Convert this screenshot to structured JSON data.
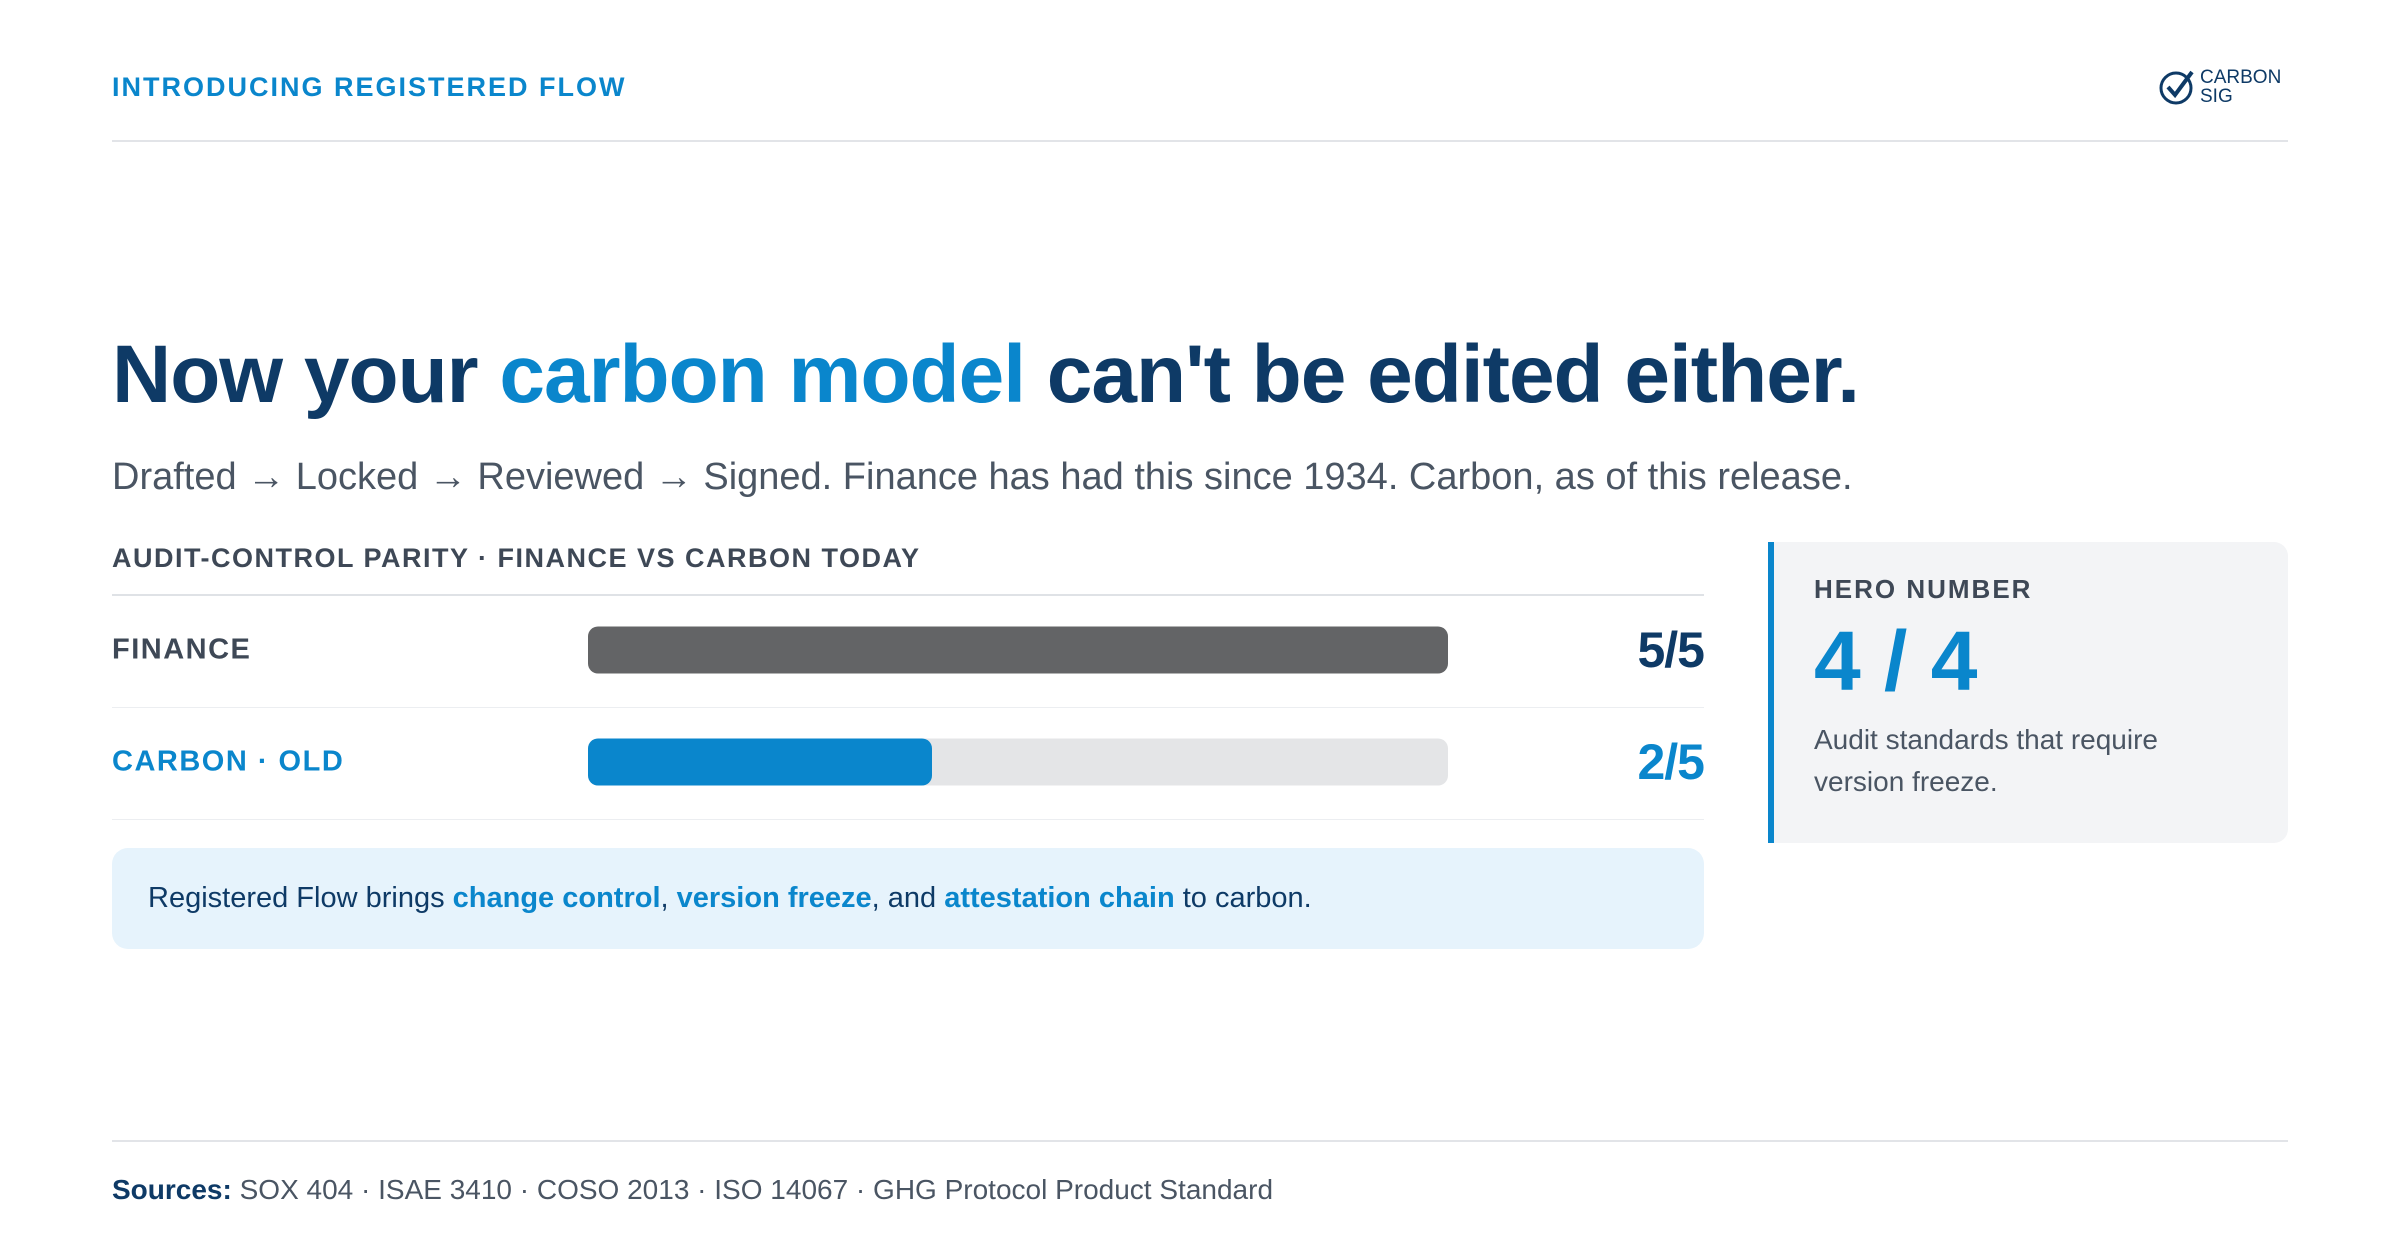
{
  "header": {
    "eyebrow": "INTRODUCING REGISTERED FLOW",
    "logo": [
      "CARBON",
      "SIG"
    ]
  },
  "headline": [
    "Now your ",
    "carbon model",
    " can't be edited either."
  ],
  "subtitle": "Drafted → Locked → Reviewed → Signed. Finance has had this since 1934. Carbon, as of this release.",
  "parity": {
    "label": "AUDIT-CONTROL PARITY · FINANCE VS CARBON TODAY",
    "max": 5,
    "rows": [
      {
        "label": "FINANCE",
        "value": 5,
        "value_label": "5/5",
        "color": "#636466",
        "text_color": "#3e4856"
      },
      {
        "label": "CARBON · OLD",
        "value": 2,
        "value_label": "2/5",
        "color": "#0a86cc",
        "text_color": "#0a86cc"
      }
    ]
  },
  "callout": [
    "Registered Flow brings ",
    "change control",
    ", ",
    "version freeze",
    ", and ",
    "attestation chain",
    " to carbon."
  ],
  "hero": {
    "label": "HERO NUMBER",
    "number": "4 / 4",
    "description": "Audit standards that require version freeze."
  },
  "sources": {
    "label": "Sources:",
    "text": " SOX 404 · ISAE 3410 · COSO 2013 · ISO 14067 · GHG Protocol Product Standard"
  }
}
